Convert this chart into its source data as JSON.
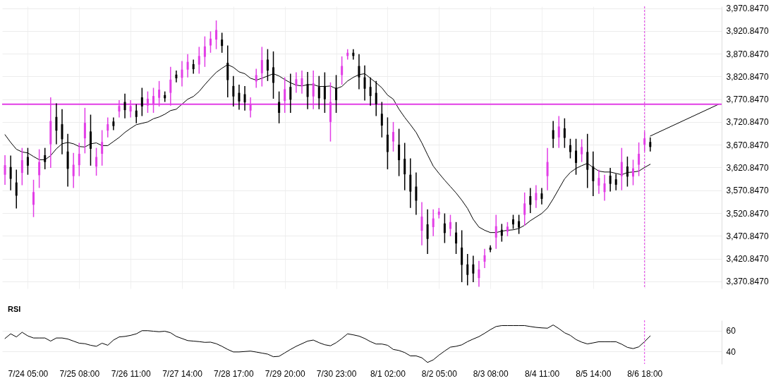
{
  "chart_data": [
    {
      "type": "candlestick",
      "categories": [
        null,
        null,
        null,
        null,
        "7/24 05:00",
        null,
        null,
        null,
        null,
        null,
        null,
        null,
        null,
        "7/25 08:00",
        null,
        null,
        null,
        null,
        null,
        null,
        null,
        null,
        "7/26 11:00",
        null,
        null,
        null,
        null,
        null,
        null,
        null,
        null,
        "7/27 14:00",
        null,
        null,
        null,
        null,
        null,
        null,
        null,
        null,
        "7/28 17:00",
        null,
        null,
        null,
        null,
        null,
        null,
        null,
        null,
        "7/29 20:00",
        null,
        null,
        null,
        null,
        null,
        null,
        null,
        null,
        "7/30 23:00",
        null,
        null,
        null,
        null,
        null,
        null,
        null,
        null,
        "8/1 02:00",
        null,
        null,
        null,
        null,
        null,
        null,
        null,
        null,
        "8/2 05:00",
        null,
        null,
        null,
        null,
        null,
        null,
        null,
        null,
        "8/3 08:00",
        null,
        null,
        null,
        null,
        null,
        null,
        null,
        null,
        "8/4 11:00",
        null,
        null,
        null,
        null,
        null,
        null,
        null,
        null,
        "8/5 14:00",
        null,
        null,
        null,
        null,
        null,
        null,
        null,
        null,
        "8/6 18:00",
        null,
        null,
        null,
        null,
        null,
        null,
        null,
        null,
        null,
        null,
        null,
        null,
        null
      ],
      "ohlc": [
        [
          3605,
          3648,
          3583,
          3626
        ],
        [
          3622,
          3647,
          3571,
          3596
        ],
        [
          3588,
          3616,
          3531,
          3559
        ],
        [
          3609,
          3664,
          3582,
          3637
        ],
        [
          3644,
          3664,
          3605,
          3625
        ],
        [
          3539,
          3594,
          3512,
          3567
        ],
        [
          3604,
          3661,
          3576,
          3633
        ],
        [
          3648,
          3664,
          3617,
          3633
        ],
        [
          3672,
          3775,
          3620,
          3723
        ],
        [
          3732,
          3762,
          3672,
          3702
        ],
        [
          3716,
          3749,
          3650,
          3683
        ],
        [
          3656,
          3695,
          3579,
          3618
        ],
        [
          3602,
          3653,
          3576,
          3627
        ],
        [
          3626,
          3675,
          3602,
          3651
        ],
        [
          3685,
          3752,
          3652,
          3719
        ],
        [
          3700,
          3737,
          3625,
          3662
        ],
        [
          3623,
          3664,
          3603,
          3644
        ],
        [
          3651,
          3703,
          3625,
          3677
        ],
        [
          3702,
          3731,
          3687,
          3716
        ],
        [
          3722,
          3731,
          3703,
          3712
        ],
        [
          3744,
          3769,
          3731,
          3756
        ],
        [
          3765,
          3783,
          3729,
          3747
        ],
        [
          3744,
          3769,
          3731,
          3756
        ],
        [
          3746,
          3760,
          3718,
          3732
        ],
        [
          3775,
          3796,
          3734,
          3755
        ],
        [
          3757,
          3788,
          3741,
          3772
        ],
        [
          3759,
          3796,
          3741,
          3778
        ],
        [
          3774,
          3811,
          3755,
          3792
        ],
        [
          3780,
          3788,
          3765,
          3773
        ],
        [
          3785,
          3842,
          3757,
          3814
        ],
        [
          3825,
          3834,
          3808,
          3817
        ],
        [
          3818,
          3855,
          3799,
          3836
        ],
        [
          3836,
          3870,
          3819,
          3853
        ],
        [
          3848,
          3858,
          3827,
          3837
        ],
        [
          3847,
          3886,
          3827,
          3866
        ],
        [
          3864,
          3909,
          3842,
          3887
        ],
        [
          3889,
          3920,
          3873,
          3904
        ],
        [
          3902,
          3944,
          3881,
          3923
        ],
        [
          3902,
          3917,
          3873,
          3888
        ],
        [
          3851,
          3889,
          3775,
          3813
        ],
        [
          3800,
          3822,
          3755,
          3777
        ],
        [
          3785,
          3803,
          3748,
          3766
        ],
        [
          3782,
          3800,
          3746,
          3764
        ],
        [
          3746,
          3775,
          3731,
          3760
        ],
        [
          3810,
          3838,
          3796,
          3824
        ],
        [
          3828,
          3886,
          3799,
          3857
        ],
        [
          3858,
          3881,
          3811,
          3834
        ],
        [
          3841,
          3876,
          3772,
          3807
        ],
        [
          3765,
          3788,
          3718,
          3741
        ],
        [
          3767,
          3819,
          3741,
          3793
        ],
        [
          3798,
          3827,
          3741,
          3770
        ],
        [
          3800,
          3830,
          3785,
          3815
        ],
        [
          3800,
          3834,
          3783,
          3817
        ],
        [
          3804,
          3831,
          3749,
          3776
        ],
        [
          3777,
          3834,
          3749,
          3806
        ],
        [
          3798,
          3822,
          3749,
          3773
        ],
        [
          3800,
          3830,
          3741,
          3771
        ],
        [
          3721,
          3808,
          3678,
          3765
        ],
        [
          3796,
          3824,
          3741,
          3769
        ],
        [
          3824,
          3865,
          3803,
          3844
        ],
        [
          3866,
          3881,
          3858,
          3873
        ],
        [
          3873,
          3881,
          3858,
          3866
        ],
        [
          3844,
          3870,
          3793,
          3819
        ],
        [
          3819,
          3845,
          3768,
          3794
        ],
        [
          3798,
          3819,
          3757,
          3778
        ],
        [
          3785,
          3811,
          3734,
          3760
        ],
        [
          3739,
          3765,
          3687,
          3713
        ],
        [
          3693,
          3731,
          3617,
          3655
        ],
        [
          3678,
          3721,
          3656,
          3699
        ],
        [
          3671,
          3706,
          3602,
          3637
        ],
        [
          3640,
          3675,
          3571,
          3606
        ],
        [
          3605,
          3641,
          3532,
          3568
        ],
        [
          3579,
          3610,
          3517,
          3548
        ],
        [
          3482,
          3545,
          3450,
          3513
        ],
        [
          3496,
          3529,
          3431,
          3464
        ],
        [
          3490,
          3529,
          3470,
          3509
        ],
        [
          3517,
          3532,
          3509,
          3524
        ],
        [
          3498,
          3520,
          3455,
          3477
        ],
        [
          3486,
          3517,
          3470,
          3501
        ],
        [
          3478,
          3501,
          3431,
          3454
        ],
        [
          3445,
          3483,
          3369,
          3407
        ],
        [
          3408,
          3431,
          3362,
          3385
        ],
        [
          3408,
          3427,
          3369,
          3388
        ],
        [
          3378,
          3416,
          3359,
          3397
        ],
        [
          3414,
          3442,
          3400,
          3428
        ],
        [
          3445,
          3450,
          3435,
          3440
        ],
        [
          3467,
          3517,
          3442,
          3492
        ],
        [
          3484,
          3497,
          3458,
          3471
        ],
        [
          3480,
          3501,
          3470,
          3491
        ],
        [
          3507,
          3517,
          3486,
          3496
        ],
        [
          3503,
          3517,
          3475,
          3489
        ],
        [
          3517,
          3566,
          3493,
          3542
        ],
        [
          3558,
          3576,
          3521,
          3539
        ],
        [
          3549,
          3582,
          3532,
          3565
        ],
        [
          3564,
          3576,
          3540,
          3552
        ],
        [
          3602,
          3664,
          3571,
          3633
        ],
        [
          3703,
          3723,
          3664,
          3684
        ],
        [
          3687,
          3734,
          3664,
          3711
        ],
        [
          3707,
          3729,
          3664,
          3686
        ],
        [
          3670,
          3684,
          3641,
          3655
        ],
        [
          3658,
          3684,
          3605,
          3631
        ],
        [
          3650,
          3683,
          3633,
          3666
        ],
        [
          3655,
          3695,
          3576,
          3616
        ],
        [
          3623,
          3656,
          3558,
          3591
        ],
        [
          3581,
          3616,
          3563,
          3598
        ],
        [
          3567,
          3605,
          3548,
          3586
        ],
        [
          3603,
          3620,
          3568,
          3585
        ],
        [
          3595,
          3607,
          3571,
          3583
        ],
        [
          3602,
          3664,
          3571,
          3633
        ],
        [
          3623,
          3645,
          3579,
          3601
        ],
        [
          3601,
          3638,
          3582,
          3619
        ],
        [
          3627,
          3676,
          3602,
          3651
        ],
        [
          3671,
          3700,
          3656,
          3685
        ],
        [
          3677,
          3687,
          3656,
          3666
        ],
        null,
        null,
        null,
        null,
        null,
        null,
        null,
        null,
        null,
        null,
        null,
        null
      ],
      "colors": [
        "#e23ee6",
        "#000000",
        "#000000",
        "#e23ee6",
        "#000000",
        "#e23ee6",
        "#e23ee6",
        "#000000",
        "#e23ee6",
        "#000000",
        "#000000",
        "#000000",
        "#e23ee6",
        "#e23ee6",
        "#e23ee6",
        "#000000",
        "#e23ee6",
        "#e23ee6",
        "#e23ee6",
        "#000000",
        "#e23ee6",
        "#000000",
        "#e23ee6",
        "#000000",
        "#000000",
        "#e23ee6",
        "#e23ee6",
        "#e23ee6",
        "#000000",
        "#e23ee6",
        "#000000",
        "#e23ee6",
        "#e23ee6",
        "#000000",
        "#e23ee6",
        "#e23ee6",
        "#e23ee6",
        "#e23ee6",
        "#000000",
        "#000000",
        "#000000",
        "#000000",
        "#000000",
        "#e23ee6",
        "#e23ee6",
        "#e23ee6",
        "#000000",
        "#000000",
        "#000000",
        "#e23ee6",
        "#000000",
        "#e23ee6",
        "#e23ee6",
        "#000000",
        "#e23ee6",
        "#000000",
        "#000000",
        "#e23ee6",
        "#000000",
        "#e23ee6",
        "#e23ee6",
        "#000000",
        "#000000",
        "#000000",
        "#000000",
        "#000000",
        "#000000",
        "#000000",
        "#e23ee6",
        "#000000",
        "#000000",
        "#000000",
        "#000000",
        "#e23ee6",
        "#000000",
        "#e23ee6",
        "#e23ee6",
        "#000000",
        "#e23ee6",
        "#000000",
        "#000000",
        "#000000",
        "#000000",
        "#e23ee6",
        "#e23ee6",
        "#000000",
        "#e23ee6",
        "#000000",
        "#e23ee6",
        "#000000",
        "#000000",
        "#e23ee6",
        "#000000",
        "#e23ee6",
        "#000000",
        "#e23ee6",
        "#000000",
        "#e23ee6",
        "#000000",
        "#000000",
        "#000000",
        "#e23ee6",
        "#000000",
        "#000000",
        "#e23ee6",
        "#e23ee6",
        "#000000",
        "#000000",
        "#e23ee6",
        "#000000",
        "#e23ee6",
        "#e23ee6",
        "#e23ee6",
        "#000000",
        null,
        null,
        null,
        null,
        null,
        null,
        null,
        null,
        null,
        null,
        null,
        null
      ],
      "series": [
        {
          "type": "line",
          "color": "#000000",
          "values": [
            3693,
            3676,
            3661,
            3655,
            3653,
            3645,
            3638,
            3638,
            3647,
            3662,
            3673,
            3676,
            3673,
            3667,
            3666,
            3673,
            3675,
            3669,
            3669,
            3678,
            3687,
            3698,
            3707,
            3715,
            3718,
            3721,
            3728,
            3732,
            3738,
            3746,
            3749,
            3760,
            3771,
            3777,
            3788,
            3803,
            3817,
            3830,
            3839,
            3847,
            3841,
            3831,
            3827,
            3817,
            3813,
            3817,
            3822,
            3827,
            3822,
            3814,
            3807,
            3802,
            3800,
            3803,
            3803,
            3799,
            3799,
            3800,
            3794,
            3799,
            3811,
            3819,
            3825,
            3827,
            3817,
            3807,
            3796,
            3780,
            3771,
            3749,
            3731,
            3715,
            3698,
            3675,
            3649,
            3624,
            3608,
            3593,
            3579,
            3565,
            3549,
            3531,
            3507,
            3490,
            3483,
            3478,
            3478,
            3481,
            3483,
            3484,
            3487,
            3494,
            3504,
            3512,
            3520,
            3532,
            3552,
            3574,
            3596,
            3610,
            3619,
            3625,
            3630,
            3621,
            3613,
            3611,
            3611,
            3608,
            3605,
            3610,
            3611,
            3613,
            3621,
            3628,
            null,
            null,
            null,
            null,
            null,
            null,
            null,
            null,
            null,
            null,
            null,
            null
          ]
        },
        {
          "type": "line",
          "color": "#000000",
          "values": [
            null,
            null,
            null,
            null,
            null,
            null,
            null,
            null,
            null,
            null,
            null,
            null,
            null,
            null,
            null,
            null,
            null,
            null,
            null,
            null,
            null,
            null,
            null,
            null,
            null,
            null,
            null,
            null,
            null,
            null,
            null,
            null,
            null,
            null,
            null,
            null,
            null,
            null,
            null,
            null,
            null,
            null,
            null,
            null,
            null,
            null,
            null,
            null,
            null,
            null,
            null,
            null,
            null,
            null,
            null,
            null,
            null,
            null,
            null,
            null,
            null,
            null,
            null,
            null,
            null,
            null,
            null,
            null,
            null,
            null,
            null,
            null,
            null,
            null,
            null,
            null,
            null,
            null,
            null,
            null,
            null,
            null,
            null,
            null,
            null,
            null,
            null,
            null,
            null,
            null,
            null,
            null,
            null,
            null,
            null,
            null,
            null,
            null,
            null,
            null,
            null,
            null,
            null,
            null,
            null,
            null,
            null,
            null,
            null,
            null,
            null,
            null,
            null,
            3690,
            null,
            null,
            null,
            null,
            null,
            null,
            null,
            null,
            null,
            null,
            null,
            3760
          ]
        }
      ],
      "ylim": [
        3355,
        3975
      ],
      "yticks": [
        {
          "value": 3370.847,
          "label": "3,370.8470"
        },
        {
          "value": 3420.847,
          "label": "3,420.8470"
        },
        {
          "value": 3470.847,
          "label": "3,470.8470"
        },
        {
          "value": 3520.847,
          "label": "3,520.8470"
        },
        {
          "value": 3570.847,
          "label": "3,570.8470"
        },
        {
          "value": 3620.847,
          "label": "3,620.8470"
        },
        {
          "value": 3670.847,
          "label": "3,670.8470"
        },
        {
          "value": 3720.847,
          "label": "3,720.8470"
        },
        {
          "value": 3770.847,
          "label": "3,770.8470"
        },
        {
          "value": 3820.847,
          "label": "3,820.8470"
        },
        {
          "value": 3870.847,
          "label": "3,870.8470"
        },
        {
          "value": 3920.847,
          "label": "3,920.8470"
        },
        {
          "value": 3970.847,
          "label": "3,970.8470"
        }
      ],
      "ref_lines": [
        {
          "axis": "y",
          "value": 3760,
          "color": "#e23ee6"
        },
        {
          "axis": "x",
          "value": "8/6 18:00",
          "color": "#e23ee6",
          "line_style": "dashed"
        }
      ],
      "grid": true,
      "tick_labels": "y"
    },
    {
      "type": "line",
      "title": "RSI",
      "categories": [
        null,
        null,
        null,
        null,
        "7/24 05:00",
        null,
        null,
        null,
        null,
        null,
        null,
        null,
        null,
        "7/25 08:00",
        null,
        null,
        null,
        null,
        null,
        null,
        null,
        null,
        "7/26 11:00",
        null,
        null,
        null,
        null,
        null,
        null,
        null,
        null,
        "7/27 14:00",
        null,
        null,
        null,
        null,
        null,
        null,
        null,
        null,
        "7/28 17:00",
        null,
        null,
        null,
        null,
        null,
        null,
        null,
        null,
        "7/29 20:00",
        null,
        null,
        null,
        null,
        null,
        null,
        null,
        null,
        "7/30 23:00",
        null,
        null,
        null,
        null,
        null,
        null,
        null,
        null,
        "8/1 02:00",
        null,
        null,
        null,
        null,
        null,
        null,
        null,
        null,
        "8/2 05:00",
        null,
        null,
        null,
        null,
        null,
        null,
        null,
        null,
        "8/3 08:00",
        null,
        null,
        null,
        null,
        null,
        null,
        null,
        null,
        "8/4 11:00",
        null,
        null,
        null,
        null,
        null,
        null,
        null,
        null,
        "8/5 14:00",
        null,
        null,
        null,
        null,
        null,
        null,
        null,
        null,
        "8/6 18:00",
        null,
        null,
        null,
        null,
        null,
        null,
        null,
        null,
        null,
        null,
        null,
        null,
        null
      ],
      "color": "#000000",
      "values": [
        52.5,
        57,
        54,
        58.5,
        55,
        53,
        53,
        53,
        50,
        53,
        53,
        52,
        50,
        48,
        47.5,
        46,
        45,
        48,
        46,
        51,
        54,
        54.5,
        55.5,
        57,
        60,
        60,
        59.5,
        59,
        59.5,
        58,
        54.5,
        52.5,
        50.5,
        50,
        49.5,
        48.8,
        49,
        47.5,
        45,
        42,
        39.6,
        39.6,
        40,
        40.4,
        39.5,
        38.5,
        37.5,
        35,
        35.4,
        38.7,
        42,
        45,
        47.5,
        50,
        51,
        48.5,
        46.5,
        45.5,
        48.5,
        52.5,
        57,
        56,
        54.8,
        52.5,
        49.5,
        47.2,
        47.2,
        46,
        42,
        41,
        39,
        35.8,
        35.8,
        34,
        29.5,
        32,
        36.5,
        40.5,
        44.2,
        45,
        46.4,
        49.5,
        52,
        54.3,
        57.5,
        61,
        64,
        64.9,
        64.9,
        64.9,
        64.9,
        64.9,
        64,
        63.2,
        62.7,
        62.4,
        65.5,
        62,
        58,
        55.5,
        51.5,
        49,
        47.3,
        48.3,
        49.4,
        49.4,
        49.4,
        49.4,
        47,
        44,
        42.8,
        44.5,
        49.5,
        55,
        null,
        null,
        null,
        null,
        null,
        null,
        null,
        null,
        null,
        null,
        null,
        null
      ],
      "ylim": [
        28,
        70
      ],
      "yticks": [
        40,
        60
      ],
      "ref_lines": [
        {
          "axis": "x",
          "value": "8/6 18:00",
          "color": "#e23ee6",
          "line_style": "dashed"
        }
      ],
      "grid": "y"
    }
  ]
}
